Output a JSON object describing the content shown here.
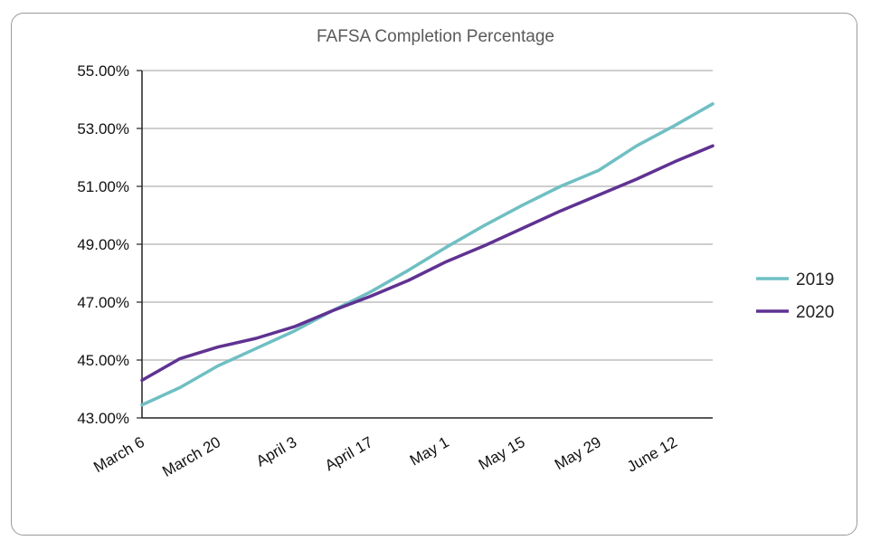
{
  "chart_data": {
    "type": "line",
    "title": "FAFSA Completion Percentage",
    "x_ticks": [
      "March 6",
      "March 20",
      "April 3",
      "April 17",
      "May 1",
      "May 15",
      "May 29",
      "June 12"
    ],
    "x_points": [
      "March 6",
      "March 13",
      "March 20",
      "March 27",
      "April 3",
      "April 10",
      "April 17",
      "April 24",
      "May 1",
      "May 8",
      "May 15",
      "May 22",
      "May 29",
      "June 5",
      "June 12",
      "June 19"
    ],
    "y_ticks": [
      "55.00%",
      "53.00%",
      "51.00%",
      "49.00%",
      "47.00%",
      "45.00%",
      "43.00%"
    ],
    "ylim": [
      43,
      55
    ],
    "grid": true,
    "legend_position": "right",
    "series": [
      {
        "name": "2019",
        "color": "#6fbfc3",
        "values": [
          43.45,
          44.05,
          44.8,
          45.4,
          46.0,
          46.7,
          47.35,
          48.1,
          48.9,
          49.65,
          50.35,
          51.0,
          51.55,
          52.4,
          53.1,
          53.85
        ]
      },
      {
        "name": "2020",
        "color": "#5f3292",
        "values": [
          44.3,
          45.05,
          45.45,
          45.75,
          46.15,
          46.7,
          47.2,
          47.75,
          48.4,
          48.95,
          49.55,
          50.15,
          50.7,
          51.25,
          51.85,
          52.4
        ]
      }
    ]
  }
}
